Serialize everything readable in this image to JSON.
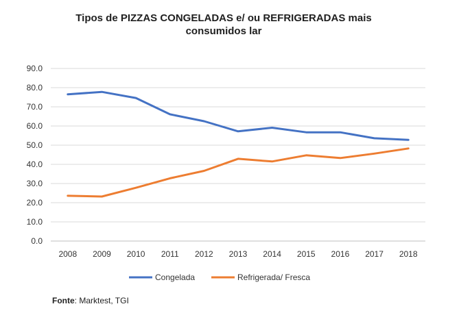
{
  "chart_data": {
    "type": "line",
    "title": "Tipos de PIZZAS CONGELADAS e/ ou REFRIGERADAS mais consumidos lar",
    "title_lines": [
      "Tipos de PIZZAS CONGELADAS e/ ou REFRIGERADAS mais",
      "consumidos lar"
    ],
    "xlabel": "",
    "ylabel": "",
    "categories": [
      "2008",
      "2009",
      "2010",
      "2011",
      "2012",
      "2013",
      "2014",
      "2015",
      "2016",
      "2017",
      "2018"
    ],
    "y_ticks": [
      "0.0",
      "10.0",
      "20.0",
      "30.0",
      "40.0",
      "50.0",
      "60.0",
      "70.0",
      "80.0",
      "90.0"
    ],
    "ylim": [
      0,
      90
    ],
    "grid": true,
    "legend_position": "bottom",
    "series": [
      {
        "name": "Congelada",
        "color": "#4472C4",
        "values": [
          76.5,
          77.8,
          74.6,
          66.1,
          62.5,
          57.2,
          59.1,
          56.7,
          56.7,
          53.6,
          52.8
        ]
      },
      {
        "name": "Refrigerada/ Fresca",
        "color": "#ED7D31",
        "values": [
          23.6,
          23.2,
          27.8,
          32.7,
          36.6,
          42.9,
          41.5,
          44.7,
          43.3,
          45.6,
          48.3
        ]
      }
    ]
  },
  "source": {
    "label": "Fonte",
    "text": ": Marktest, TGI"
  }
}
